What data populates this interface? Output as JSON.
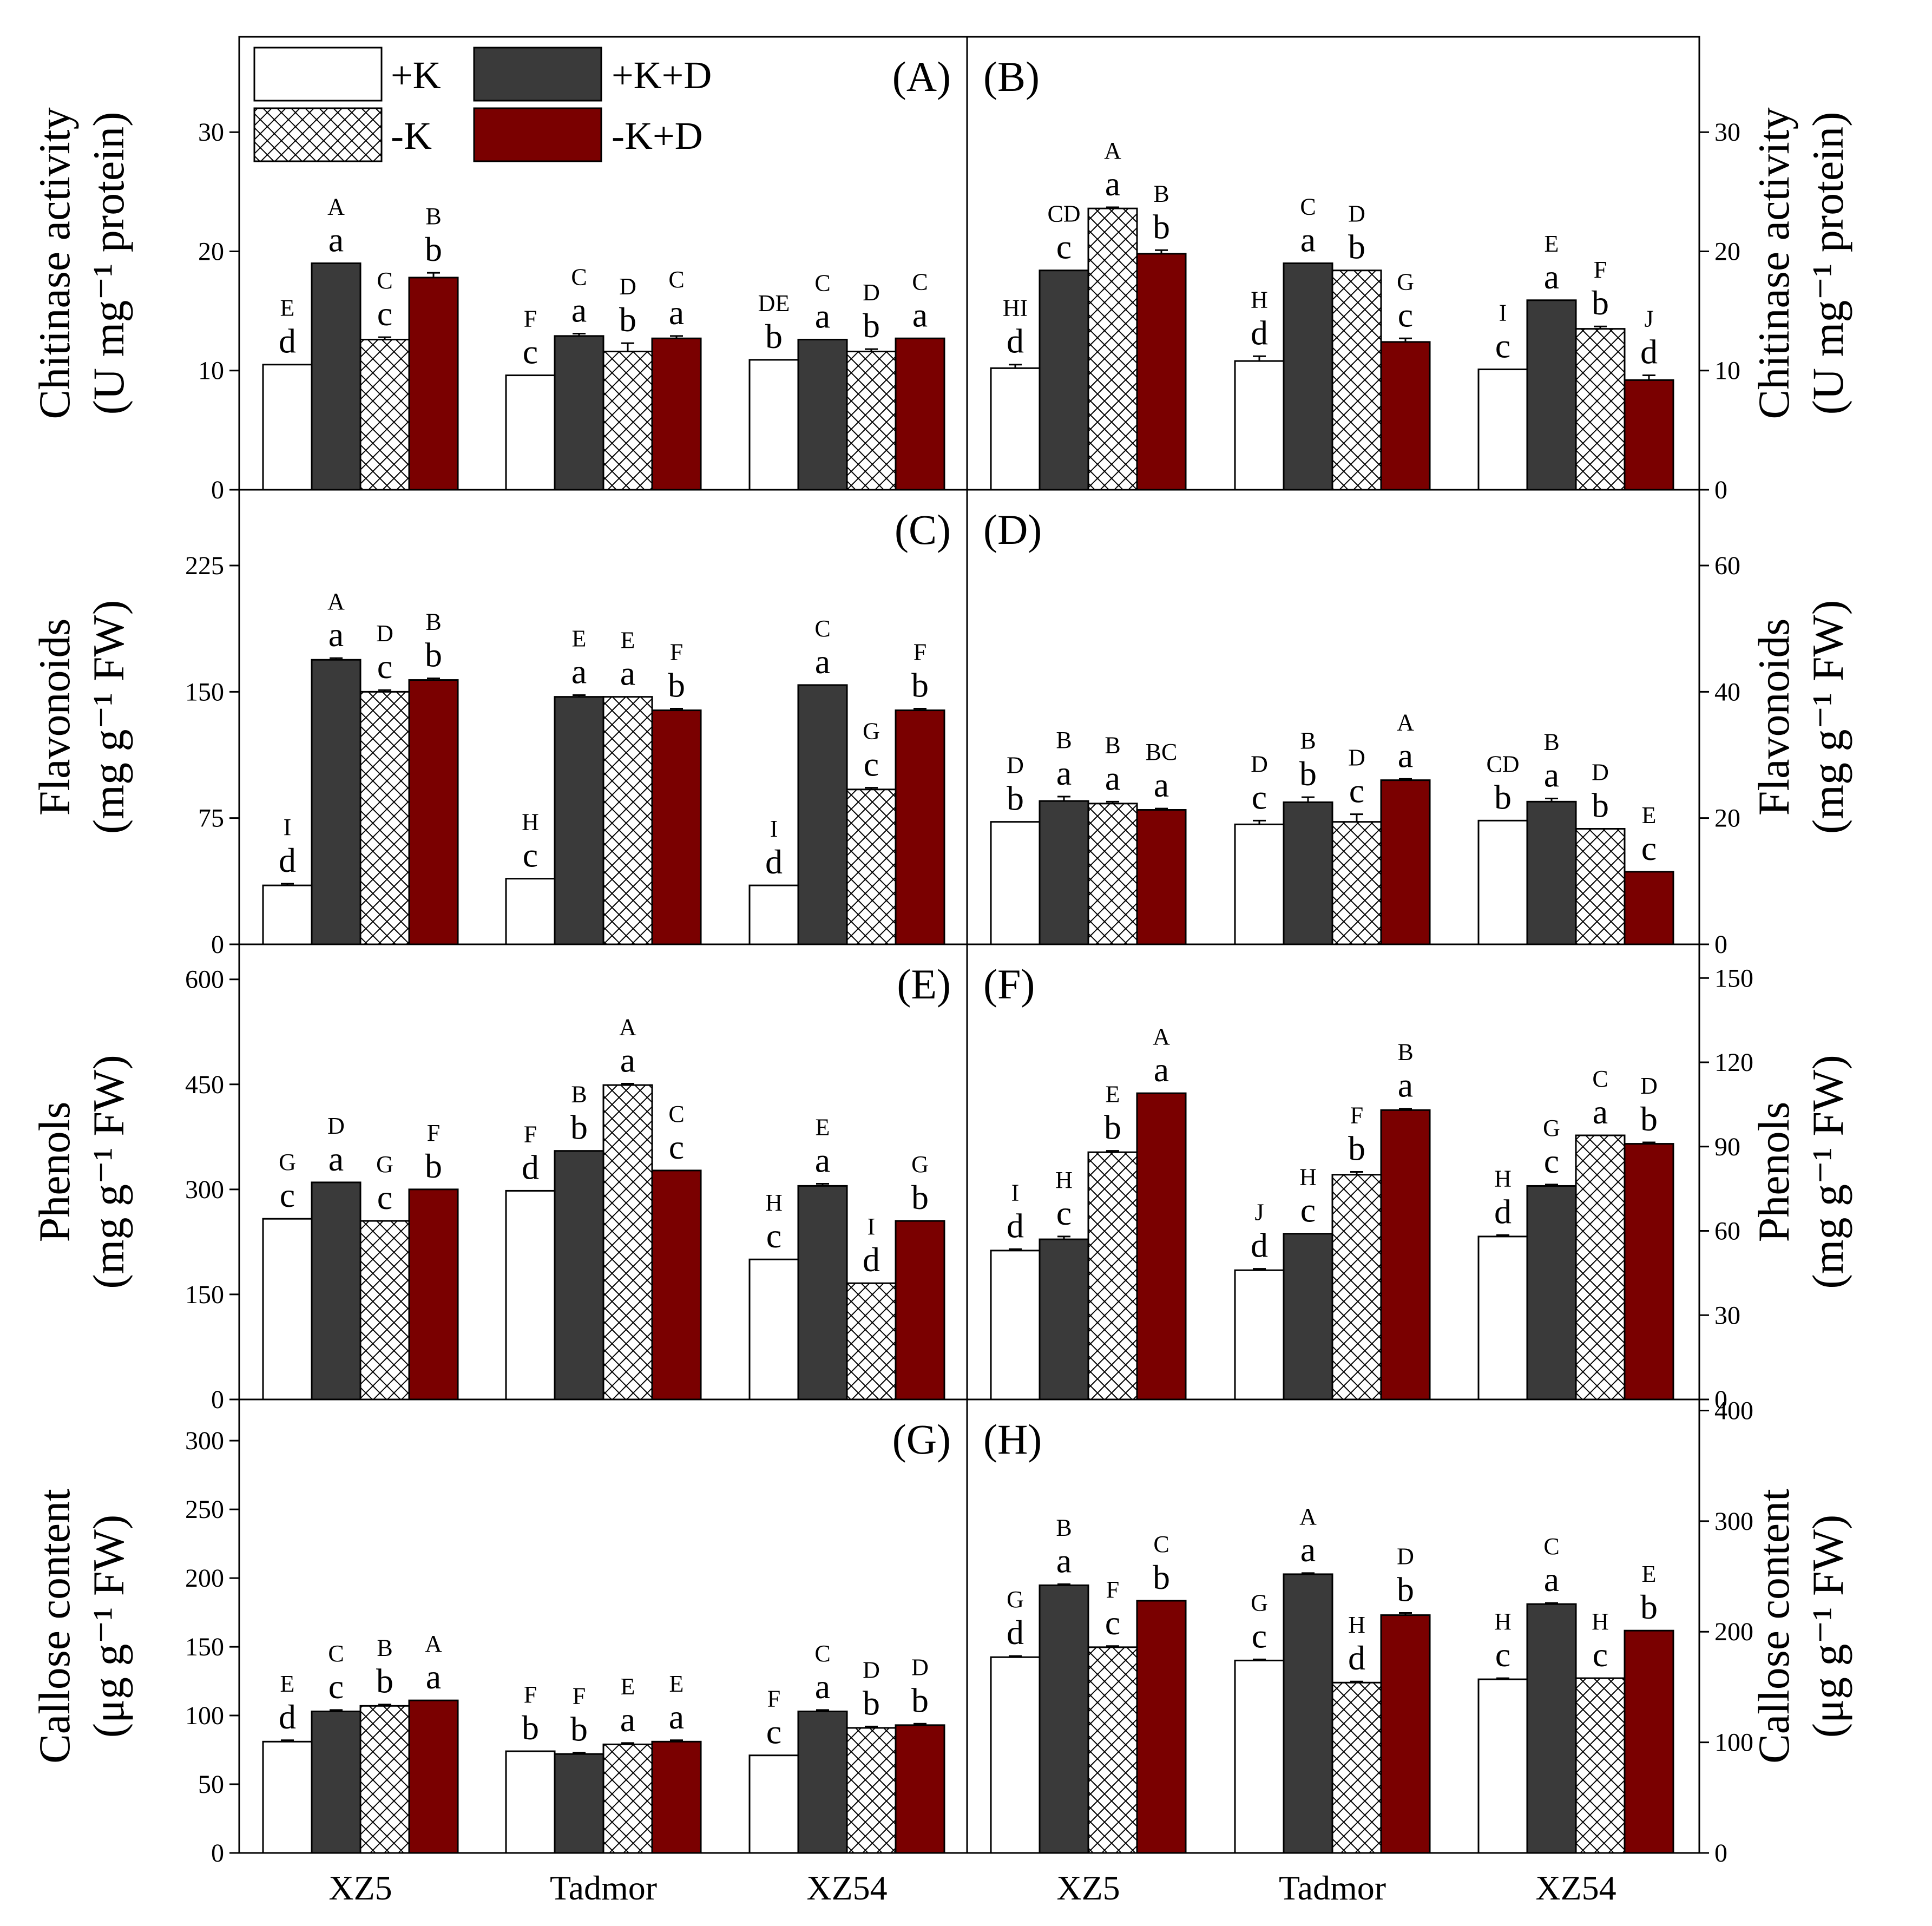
{
  "colors": {
    "plusK": "#ffffff",
    "plusKD": "#3a3a3a",
    "minusK": "#ffffff",
    "minusKD": "#7a0000",
    "axis": "#000000"
  },
  "legend": {
    "items": [
      {
        "label": "+K",
        "style": "plusK"
      },
      {
        "label": "+K+D",
        "style": "plusKD"
      },
      {
        "label": "-K",
        "style": "minusK"
      },
      {
        "label": "-K+D",
        "style": "minusKD"
      }
    ]
  },
  "chart_data": [
    {
      "panel": "(A)",
      "type": "bar",
      "side": "left",
      "ylabel_line1": "Chitinase activity",
      "ylabel_line2": "(U mg⁻¹ protein)",
      "ylim": [
        0,
        38
      ],
      "yticks": [
        0,
        10,
        20,
        30
      ],
      "ytick_labels": [
        "0",
        "10",
        "20",
        "30"
      ],
      "categories": [
        "XZ5",
        "Tadmor",
        "XZ54"
      ],
      "series": [
        {
          "name": "+K",
          "values": [
            10.5,
            9.6,
            10.9
          ],
          "err": [
            0,
            0,
            0
          ],
          "lower": [
            "d",
            "c",
            "b"
          ],
          "upper": [
            "E",
            "F",
            "DE"
          ]
        },
        {
          "name": "+K+D",
          "values": [
            19.0,
            12.9,
            12.6
          ],
          "err": [
            0,
            0.2,
            0
          ],
          "lower": [
            "a",
            "a",
            "a"
          ],
          "upper": [
            "A",
            "C",
            "C"
          ]
        },
        {
          "name": "-K",
          "values": [
            12.6,
            11.6,
            11.6
          ],
          "err": [
            0.2,
            0.7,
            0.2
          ],
          "lower": [
            "c",
            "b",
            "b"
          ],
          "upper": [
            "C",
            "D",
            "D"
          ]
        },
        {
          "name": "-K+D",
          "values": [
            17.8,
            12.7,
            12.7
          ],
          "err": [
            0.4,
            0.2,
            0
          ],
          "lower": [
            "b",
            "a",
            "a"
          ],
          "upper": [
            "B",
            "C",
            "C"
          ]
        }
      ]
    },
    {
      "panel": "(B)",
      "type": "bar",
      "side": "right",
      "ylabel_line1": "Chitinase activity",
      "ylabel_line2": "(U mg⁻¹ protein)",
      "ylim": [
        0,
        38
      ],
      "yticks": [
        0,
        10,
        20,
        30
      ],
      "ytick_labels": [
        "0",
        "10",
        "20",
        "30"
      ],
      "categories": [
        "XZ5",
        "Tadmor",
        "XZ54"
      ],
      "series": [
        {
          "name": "+K",
          "values": [
            10.2,
            10.8,
            10.1
          ],
          "err": [
            0.3,
            0.4,
            0
          ],
          "lower": [
            "d",
            "d",
            "c"
          ],
          "upper": [
            "HI",
            "H",
            "I"
          ]
        },
        {
          "name": "+K+D",
          "values": [
            18.4,
            19.0,
            15.9
          ],
          "err": [
            0,
            0,
            0
          ],
          "lower": [
            "c",
            "a",
            "a"
          ],
          "upper": [
            "CD",
            "C",
            "E"
          ]
        },
        {
          "name": "-K",
          "values": [
            23.6,
            18.4,
            13.5
          ],
          "err": [
            0.1,
            0,
            0.2
          ],
          "lower": [
            "a",
            "b",
            "b"
          ],
          "upper": [
            "A",
            "D",
            "F"
          ]
        },
        {
          "name": "-K+D",
          "values": [
            19.8,
            12.4,
            9.2
          ],
          "err": [
            0.3,
            0.3,
            0.4
          ],
          "lower": [
            "b",
            "c",
            "d"
          ],
          "upper": [
            "B",
            "G",
            "J"
          ]
        }
      ]
    },
    {
      "panel": "(C)",
      "type": "bar",
      "side": "left",
      "ylabel_line1": "Flavonoids",
      "ylabel_line2": "(mg g⁻¹ FW)",
      "ylim": [
        0,
        270
      ],
      "yticks": [
        0,
        75,
        150,
        225
      ],
      "ytick_labels": [
        "0",
        "75",
        "150",
        "225"
      ],
      "categories": [
        "XZ5",
        "Tadmor",
        "XZ54"
      ],
      "series": [
        {
          "name": "+K",
          "values": [
            35,
            39,
            35
          ],
          "err": [
            1,
            0,
            0
          ],
          "lower": [
            "d",
            "c",
            "d"
          ],
          "upper": [
            "I",
            "H",
            "I"
          ]
        },
        {
          "name": "+K+D",
          "values": [
            169,
            147,
            154
          ],
          "err": [
            1,
            1,
            0
          ],
          "lower": [
            "a",
            "a",
            "a"
          ],
          "upper": [
            "A",
            "E",
            "C"
          ]
        },
        {
          "name": "-K",
          "values": [
            150,
            147,
            92
          ],
          "err": [
            1,
            0,
            1
          ],
          "lower": [
            "c",
            "a",
            "c"
          ],
          "upper": [
            "D",
            "E",
            "G"
          ]
        },
        {
          "name": "-K+D",
          "values": [
            157,
            139,
            139
          ],
          "err": [
            1,
            1,
            1
          ],
          "lower": [
            "b",
            "b",
            "b"
          ],
          "upper": [
            "B",
            "F",
            "F"
          ]
        }
      ]
    },
    {
      "panel": "(D)",
      "type": "bar",
      "side": "right",
      "ylabel_line1": "Flavonoids",
      "ylabel_line2": "(mg g⁻¹ FW)",
      "ylim": [
        0,
        72
      ],
      "yticks": [
        0,
        20,
        40,
        60
      ],
      "ytick_labels": [
        "0",
        "20",
        "40",
        "60"
      ],
      "categories": [
        "XZ5",
        "Tadmor",
        "XZ54"
      ],
      "series": [
        {
          "name": "+K",
          "values": [
            19.4,
            19.0,
            19.6
          ],
          "err": [
            0,
            0.6,
            0
          ],
          "lower": [
            "b",
            "c",
            "b"
          ],
          "upper": [
            "D",
            "D",
            "CD"
          ]
        },
        {
          "name": "+K+D",
          "values": [
            22.7,
            22.5,
            22.6
          ],
          "err": [
            0.7,
            0.8,
            0.5
          ],
          "lower": [
            "a",
            "b",
            "a"
          ],
          "upper": [
            "B",
            "B",
            "B"
          ]
        },
        {
          "name": "-K",
          "values": [
            22.3,
            19.4,
            18.3
          ],
          "err": [
            0.3,
            1.2,
            0
          ],
          "lower": [
            "a",
            "c",
            "b"
          ],
          "upper": [
            "B",
            "D",
            "D"
          ]
        },
        {
          "name": "-K+D",
          "values": [
            21.3,
            26.0,
            11.5
          ],
          "err": [
            0.2,
            0.2,
            0
          ],
          "lower": [
            "a",
            "a",
            "c"
          ],
          "upper": [
            "BC",
            "A",
            "E"
          ]
        }
      ]
    },
    {
      "panel": "(E)",
      "type": "bar",
      "side": "left",
      "ylabel_line1": "Phenols",
      "ylabel_line2": "(mg g⁻¹ FW)",
      "ylim": [
        0,
        650
      ],
      "yticks": [
        0,
        150,
        300,
        450,
        600
      ],
      "ytick_labels": [
        "0",
        "150",
        "300",
        "450",
        "600"
      ],
      "categories": [
        "XZ5",
        "Tadmor",
        "XZ54"
      ],
      "series": [
        {
          "name": "+K",
          "values": [
            258,
            298,
            200
          ],
          "err": [
            0,
            0,
            0
          ],
          "lower": [
            "c",
            "d",
            "c"
          ],
          "upper": [
            "G",
            "F",
            "H"
          ]
        },
        {
          "name": "+K+D",
          "values": [
            310,
            355,
            305
          ],
          "err": [
            0,
            0,
            3
          ],
          "lower": [
            "a",
            "b",
            "a"
          ],
          "upper": [
            "D",
            "B",
            "E"
          ]
        },
        {
          "name": "-K",
          "values": [
            255,
            449,
            166
          ],
          "err": [
            0,
            2,
            0
          ],
          "lower": [
            "c",
            "a",
            "d"
          ],
          "upper": [
            "G",
            "A",
            "I"
          ]
        },
        {
          "name": "-K+D",
          "values": [
            300,
            327,
            255
          ],
          "err": [
            0,
            0,
            0
          ],
          "lower": [
            "b",
            "c",
            "b"
          ],
          "upper": [
            "F",
            "C",
            "G"
          ]
        }
      ]
    },
    {
      "panel": "(F)",
      "type": "bar",
      "side": "right",
      "ylabel_line1": "Phenols",
      "ylabel_line2": "(mg g⁻¹ FW)",
      "ylim": [
        0,
        162
      ],
      "yticks": [
        0,
        30,
        60,
        90,
        120,
        150
      ],
      "ytick_labels": [
        "0",
        "30",
        "60",
        "90",
        "120",
        "150"
      ],
      "categories": [
        "XZ5",
        "Tadmor",
        "XZ54"
      ],
      "series": [
        {
          "name": "+K",
          "values": [
            53,
            46,
            58
          ],
          "err": [
            0.5,
            0.5,
            0.5
          ],
          "lower": [
            "d",
            "d",
            "d"
          ],
          "upper": [
            "I",
            "J",
            "H"
          ]
        },
        {
          "name": "+K+D",
          "values": [
            57,
            59,
            76
          ],
          "err": [
            1,
            0,
            0.5
          ],
          "lower": [
            "c",
            "c",
            "c"
          ],
          "upper": [
            "H",
            "H",
            "G"
          ]
        },
        {
          "name": "-K",
          "values": [
            88,
            80,
            94
          ],
          "err": [
            0.5,
            1,
            0
          ],
          "lower": [
            "b",
            "b",
            "a"
          ],
          "upper": [
            "E",
            "F",
            "C"
          ]
        },
        {
          "name": "-K+D",
          "values": [
            109,
            103,
            91
          ],
          "err": [
            0,
            0.5,
            0.5
          ],
          "lower": [
            "a",
            "a",
            "b"
          ],
          "upper": [
            "A",
            "B",
            "D"
          ]
        }
      ]
    },
    {
      "panel": "(G)",
      "type": "bar",
      "side": "left",
      "ylabel_line1": "Callose content",
      "ylabel_line2": "(μg g⁻¹ FW)",
      "ylim": [
        0,
        330
      ],
      "yticks": [
        0,
        50,
        100,
        150,
        200,
        250,
        300
      ],
      "ytick_labels": [
        "0",
        "50",
        "100",
        "150",
        "200",
        "250",
        "300"
      ],
      "categories": [
        "XZ5",
        "Tadmor",
        "XZ54"
      ],
      "series": [
        {
          "name": "+K",
          "values": [
            81,
            74,
            71
          ],
          "err": [
            1,
            0,
            0
          ],
          "lower": [
            "d",
            "b",
            "c"
          ],
          "upper": [
            "E",
            "F",
            "F"
          ]
        },
        {
          "name": "+K+D",
          "values": [
            103,
            72,
            103
          ],
          "err": [
            1,
            1,
            1
          ],
          "lower": [
            "c",
            "b",
            "a"
          ],
          "upper": [
            "C",
            "F",
            "C"
          ]
        },
        {
          "name": "-K",
          "values": [
            107,
            79,
            91
          ],
          "err": [
            1,
            1,
            1
          ],
          "lower": [
            "b",
            "a",
            "b"
          ],
          "upper": [
            "B",
            "E",
            "D"
          ]
        },
        {
          "name": "-K+D",
          "values": [
            111,
            81,
            93
          ],
          "err": [
            0,
            1,
            1
          ],
          "lower": [
            "a",
            "a",
            "b"
          ],
          "upper": [
            "A",
            "E",
            "D"
          ]
        }
      ]
    },
    {
      "panel": "(H)",
      "type": "bar",
      "side": "right",
      "ylabel_line1": "Callose content",
      "ylabel_line2": "(μg g⁻¹ FW)",
      "ylim": [
        0,
        410
      ],
      "yticks": [
        0,
        100,
        200,
        300,
        400
      ],
      "ytick_labels": [
        "0",
        "100",
        "200",
        "300",
        "400"
      ],
      "categories": [
        "XZ5",
        "Tadmor",
        "XZ54"
      ],
      "series": [
        {
          "name": "+K",
          "values": [
            177,
            174,
            157
          ],
          "err": [
            1,
            1,
            1
          ],
          "lower": [
            "d",
            "c",
            "c"
          ],
          "upper": [
            "G",
            "G",
            "H"
          ]
        },
        {
          "name": "+K+D",
          "values": [
            242,
            252,
            225
          ],
          "err": [
            1,
            1,
            1
          ],
          "lower": [
            "a",
            "a",
            "a"
          ],
          "upper": [
            "B",
            "A",
            "C"
          ]
        },
        {
          "name": "-K",
          "values": [
            186,
            154,
            158
          ],
          "err": [
            1,
            1,
            0
          ],
          "lower": [
            "c",
            "d",
            "c"
          ],
          "upper": [
            "F",
            "H",
            "H"
          ]
        },
        {
          "name": "-K+D",
          "values": [
            228,
            215,
            201
          ],
          "err": [
            0,
            2,
            0
          ],
          "lower": [
            "b",
            "b",
            "b"
          ],
          "upper": [
            "C",
            "D",
            "E"
          ]
        }
      ]
    }
  ]
}
